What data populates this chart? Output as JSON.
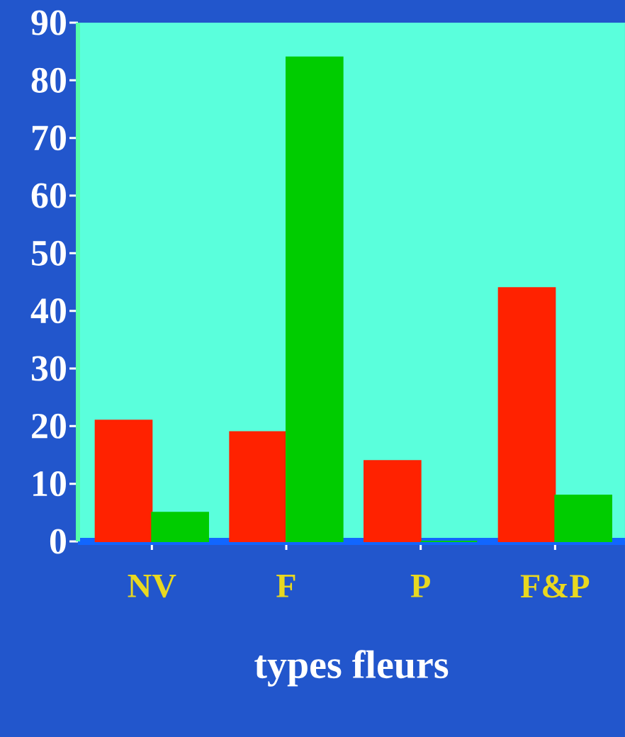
{
  "chart_data": {
    "type": "bar",
    "xlabel": "types fleurs",
    "categories": [
      "NV",
      "F",
      "P",
      "F&P"
    ],
    "series": [
      {
        "color": "#ff2200",
        "values": [
          21,
          19,
          14,
          44
        ]
      },
      {
        "color": "#00cc00",
        "values": [
          5,
          84,
          0,
          8
        ]
      }
    ],
    "ylim": [
      0,
      90
    ],
    "yticks": [
      0,
      10,
      20,
      30,
      40,
      50,
      60,
      70,
      80,
      90
    ]
  }
}
